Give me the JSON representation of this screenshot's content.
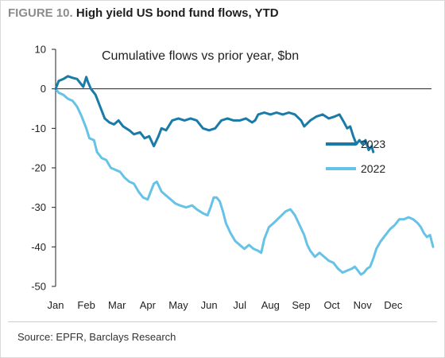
{
  "figure": {
    "label": "FIGURE 10.",
    "title": "High yield US bond fund flows, YTD",
    "source": "Source: EPFR, Barclays Research"
  },
  "chart_data": {
    "type": "line",
    "subtitle": "Cumulative flows vs prior year,  $bn",
    "xlabel": "",
    "ylabel": "",
    "x_tick_labels": [
      "Jan",
      "Feb",
      "Mar",
      "Apr",
      "May",
      "Jun",
      "Jul",
      "Aug",
      "Sep",
      "Oct",
      "Nov",
      "Dec"
    ],
    "y_ticks": [
      10,
      0,
      -10,
      -20,
      -30,
      -40,
      -50
    ],
    "ylim": [
      -50,
      10
    ],
    "xlim_month": [
      0,
      12.3
    ],
    "grid": false,
    "zero_line": true,
    "legend_position": "right, mid",
    "series": [
      {
        "name": "2023",
        "color": "#1a7aa8",
        "points": [
          [
            0.0,
            0
          ],
          [
            0.1,
            2
          ],
          [
            0.25,
            2.5
          ],
          [
            0.4,
            3.2
          ],
          [
            0.55,
            2.8
          ],
          [
            0.7,
            2.5
          ],
          [
            0.8,
            1.5
          ],
          [
            0.9,
            0.5
          ],
          [
            1.0,
            3.0
          ],
          [
            1.05,
            1.8
          ],
          [
            1.15,
            0.0
          ],
          [
            1.3,
            -1.5
          ],
          [
            1.45,
            -4.5
          ],
          [
            1.6,
            -7.5
          ],
          [
            1.75,
            -8.5
          ],
          [
            1.9,
            -9.0
          ],
          [
            2.05,
            -8.0
          ],
          [
            2.2,
            -9.5
          ],
          [
            2.4,
            -10.5
          ],
          [
            2.55,
            -11.5
          ],
          [
            2.75,
            -11.0
          ],
          [
            2.9,
            -12.5
          ],
          [
            3.05,
            -12.0
          ],
          [
            3.2,
            -14.5
          ],
          [
            3.35,
            -12.0
          ],
          [
            3.45,
            -10.0
          ],
          [
            3.6,
            -10.5
          ],
          [
            3.8,
            -8.0
          ],
          [
            4.0,
            -7.5
          ],
          [
            4.2,
            -8.0
          ],
          [
            4.4,
            -7.5
          ],
          [
            4.6,
            -8.0
          ],
          [
            4.8,
            -10.0
          ],
          [
            5.0,
            -10.5
          ],
          [
            5.2,
            -10.0
          ],
          [
            5.4,
            -8.0
          ],
          [
            5.6,
            -7.5
          ],
          [
            5.8,
            -8.0
          ],
          [
            6.0,
            -8.0
          ],
          [
            6.2,
            -7.5
          ],
          [
            6.4,
            -8.5
          ],
          [
            6.5,
            -8.0
          ],
          [
            6.6,
            -6.5
          ],
          [
            6.8,
            -6.0
          ],
          [
            7.0,
            -6.5
          ],
          [
            7.2,
            -6.0
          ],
          [
            7.4,
            -6.5
          ],
          [
            7.6,
            -6.0
          ],
          [
            7.8,
            -6.5
          ],
          [
            8.0,
            -8.0
          ],
          [
            8.1,
            -9.5
          ],
          [
            8.3,
            -8.0
          ],
          [
            8.5,
            -7.0
          ],
          [
            8.7,
            -6.5
          ],
          [
            8.9,
            -7.5
          ],
          [
            9.1,
            -7.0
          ],
          [
            9.25,
            -6.5
          ],
          [
            9.4,
            -8.5
          ],
          [
            9.5,
            -10.0
          ],
          [
            9.6,
            -9.5
          ],
          [
            9.7,
            -12.0
          ],
          [
            9.8,
            -14.0
          ],
          [
            9.9,
            -13.0
          ],
          [
            10.0,
            -14.0
          ],
          [
            10.1,
            -13.0
          ],
          [
            10.2,
            -15.5
          ],
          [
            10.3,
            -14.5
          ],
          [
            10.35,
            -16.0
          ]
        ]
      },
      {
        "name": "2022",
        "color": "#66c2e6",
        "points": [
          [
            0.0,
            0
          ],
          [
            0.1,
            -1.0
          ],
          [
            0.25,
            -1.5
          ],
          [
            0.4,
            -2.5
          ],
          [
            0.55,
            -3.0
          ],
          [
            0.7,
            -4.5
          ],
          [
            0.85,
            -7.0
          ],
          [
            1.0,
            -10.0
          ],
          [
            1.1,
            -12.5
          ],
          [
            1.25,
            -13.0
          ],
          [
            1.35,
            -16.0
          ],
          [
            1.5,
            -17.5
          ],
          [
            1.65,
            -18.0
          ],
          [
            1.8,
            -20.0
          ],
          [
            1.95,
            -20.5
          ],
          [
            2.1,
            -21.0
          ],
          [
            2.25,
            -22.5
          ],
          [
            2.4,
            -23.5
          ],
          [
            2.55,
            -24.0
          ],
          [
            2.7,
            -26.0
          ],
          [
            2.85,
            -27.5
          ],
          [
            3.0,
            -28.0
          ],
          [
            3.1,
            -26.0
          ],
          [
            3.2,
            -24.0
          ],
          [
            3.3,
            -23.5
          ],
          [
            3.45,
            -26.0
          ],
          [
            3.6,
            -27.0
          ],
          [
            3.75,
            -28.0
          ],
          [
            3.9,
            -29.0
          ],
          [
            4.05,
            -29.5
          ],
          [
            4.25,
            -30.0
          ],
          [
            4.45,
            -29.5
          ],
          [
            4.6,
            -30.5
          ],
          [
            4.8,
            -31.5
          ],
          [
            4.95,
            -32.0
          ],
          [
            5.05,
            -30.0
          ],
          [
            5.15,
            -27.5
          ],
          [
            5.25,
            -27.5
          ],
          [
            5.35,
            -28.5
          ],
          [
            5.45,
            -31.0
          ],
          [
            5.55,
            -34.0
          ],
          [
            5.7,
            -36.5
          ],
          [
            5.85,
            -38.5
          ],
          [
            6.0,
            -39.5
          ],
          [
            6.15,
            -40.5
          ],
          [
            6.3,
            -39.5
          ],
          [
            6.45,
            -40.5
          ],
          [
            6.6,
            -41.0
          ],
          [
            6.7,
            -41.5
          ],
          [
            6.8,
            -38.0
          ],
          [
            6.95,
            -35.0
          ],
          [
            7.1,
            -34.0
          ],
          [
            7.3,
            -32.5
          ],
          [
            7.5,
            -31.0
          ],
          [
            7.65,
            -30.5
          ],
          [
            7.8,
            -32.0
          ],
          [
            7.95,
            -34.5
          ],
          [
            8.1,
            -37.0
          ],
          [
            8.2,
            -39.5
          ],
          [
            8.3,
            -41.0
          ],
          [
            8.45,
            -42.5
          ],
          [
            8.6,
            -41.5
          ],
          [
            8.75,
            -42.5
          ],
          [
            8.9,
            -43.5
          ],
          [
            9.05,
            -44.0
          ],
          [
            9.2,
            -45.5
          ],
          [
            9.35,
            -46.5
          ],
          [
            9.5,
            -46.0
          ],
          [
            9.65,
            -45.5
          ],
          [
            9.75,
            -45.0
          ],
          [
            9.85,
            -46.0
          ],
          [
            9.95,
            -47.0
          ],
          [
            10.05,
            -46.5
          ],
          [
            10.15,
            -45.5
          ],
          [
            10.25,
            -45.0
          ],
          [
            10.35,
            -43.0
          ],
          [
            10.45,
            -40.5
          ],
          [
            10.6,
            -38.5
          ],
          [
            10.75,
            -37.0
          ],
          [
            10.9,
            -35.5
          ],
          [
            11.05,
            -34.5
          ],
          [
            11.2,
            -33.0
          ],
          [
            11.35,
            -33.0
          ],
          [
            11.5,
            -32.5
          ],
          [
            11.65,
            -33.0
          ],
          [
            11.8,
            -34.0
          ],
          [
            11.9,
            -35.0
          ],
          [
            12.0,
            -36.5
          ],
          [
            12.1,
            -37.5
          ],
          [
            12.2,
            -37.0
          ],
          [
            12.3,
            -40.0
          ]
        ]
      }
    ]
  }
}
